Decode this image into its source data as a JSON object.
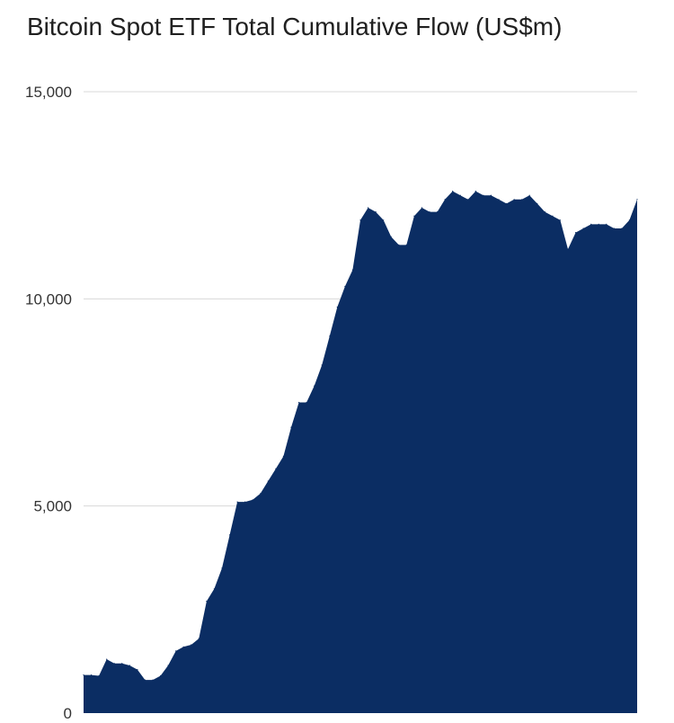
{
  "chart_data": {
    "type": "area",
    "title": "Bitcoin Spot ETF Total Cumulative Flow (US$m)",
    "xlabel": "",
    "ylabel": "",
    "ylim": [
      0,
      15000
    ],
    "yticks": [
      {
        "value": 0,
        "label": "0"
      },
      {
        "value": 5000,
        "label": "5,000"
      },
      {
        "value": 10000,
        "label": "10,000"
      },
      {
        "value": 15000,
        "label": "15,000"
      }
    ],
    "grid": true,
    "legend": "none",
    "colors": {
      "area": "#0b2d63",
      "grid": "#d8d8d8"
    },
    "series": [
      {
        "values": [
          920,
          920,
          900,
          1300,
          1200,
          1200,
          1150,
          1050,
          800,
          800,
          900,
          1150,
          1500,
          1600,
          1650,
          1800,
          2700,
          3000,
          3500,
          4300,
          5100,
          5100,
          5150,
          5300,
          5600,
          5900,
          6200,
          6900,
          7500,
          7500,
          7900,
          8400,
          9100,
          9800,
          10300,
          10700,
          11900,
          12200,
          12100,
          11900,
          11500,
          11300,
          11300,
          12000,
          12200,
          12100,
          12100,
          12400,
          12600,
          12500,
          12400,
          12600,
          12500,
          12500,
          12400,
          12300,
          12400,
          12400,
          12500,
          12300,
          12100,
          12000,
          11900,
          11200,
          11600,
          11700,
          11800,
          11800,
          11800,
          11700,
          11700,
          11900,
          12400
        ]
      }
    ]
  }
}
